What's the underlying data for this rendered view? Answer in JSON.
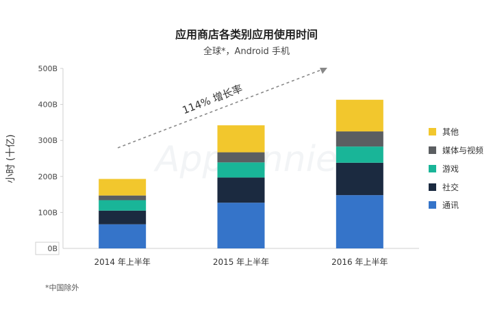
{
  "title": "应用商店各类别应用使用时间",
  "subtitle": "全球*，Android 手机",
  "footnote": "*中国除外",
  "watermark": "App Annie",
  "chart_data": {
    "type": "bar",
    "stacked": true,
    "categories": [
      "2014 年上半年",
      "2015 年上半年",
      "2016 年上半年"
    ],
    "ylabel": "小时 (十亿)",
    "ylim": [
      0,
      500
    ],
    "yticks": [
      {
        "value": 0,
        "label": "0B"
      },
      {
        "value": 100,
        "label": "100B"
      },
      {
        "value": 200,
        "label": "200B"
      },
      {
        "value": 300,
        "label": "300B"
      },
      {
        "value": 400,
        "label": "400B"
      },
      {
        "value": 500,
        "label": "500B"
      }
    ],
    "series": [
      {
        "name": "通讯",
        "color": "#3574c9",
        "values": [
          67,
          127,
          148
        ]
      },
      {
        "name": "社交",
        "color": "#1b2a40",
        "values": [
          38,
          70,
          90
        ]
      },
      {
        "name": "游戏",
        "color": "#19b598",
        "values": [
          29,
          42,
          45
        ]
      },
      {
        "name": "媒体与视频",
        "color": "#5b5e61",
        "values": [
          13,
          28,
          42
        ]
      },
      {
        "name": "其他",
        "color": "#f2c72d",
        "values": [
          46,
          75,
          88
        ]
      }
    ],
    "legend_position": "right",
    "legend_order": [
      "其他",
      "媒体与视频",
      "游戏",
      "社交",
      "通讯"
    ],
    "annotation": "114% 增长率"
  }
}
